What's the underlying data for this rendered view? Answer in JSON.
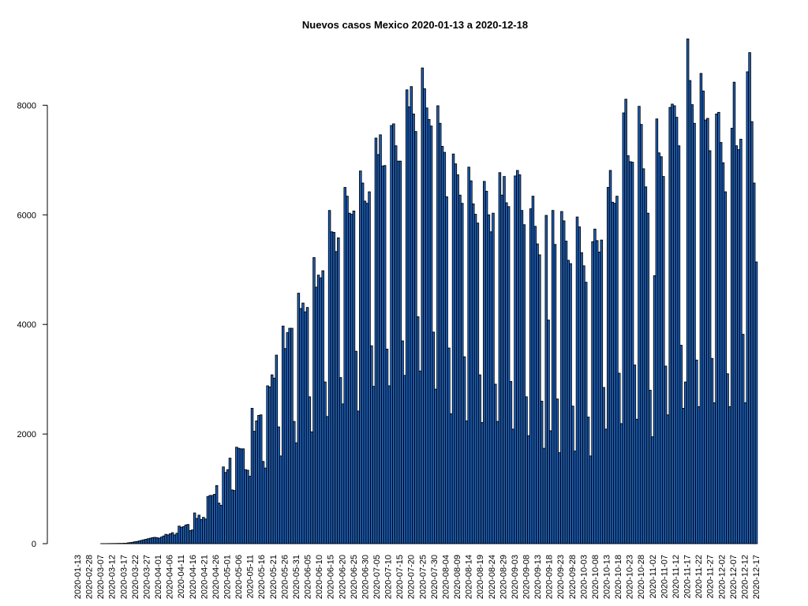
{
  "chart_data": {
    "type": "bar",
    "title": "Nuevos casos Mexico 2020-01-13 a 2020-12-18",
    "xlabel": "",
    "ylabel": "",
    "ylim": [
      0,
      9200
    ],
    "yticks": [
      0,
      2000,
      4000,
      6000,
      8000
    ],
    "x_start": "2020-01-13",
    "x_end": "2020-12-18",
    "x_ticks": [
      "2020-01-13",
      "2020-02-28",
      "2020-03-07",
      "2020-03-12",
      "2020-03-17",
      "2020-03-22",
      "2020-03-27",
      "2020-04-01",
      "2020-04-06",
      "2020-04-11",
      "2020-04-16",
      "2020-04-21",
      "2020-04-26",
      "2020-05-01",
      "2020-05-06",
      "2020-05-11",
      "2020-05-16",
      "2020-05-21",
      "2020-05-26",
      "2020-05-31",
      "2020-06-05",
      "2020-06-10",
      "2020-06-15",
      "2020-06-20",
      "2020-06-25",
      "2020-06-30",
      "2020-07-05",
      "2020-07-10",
      "2020-07-15",
      "2020-07-20",
      "2020-07-25",
      "2020-07-30",
      "2020-08-04",
      "2020-08-09",
      "2020-08-14",
      "2020-08-19",
      "2020-08-24",
      "2020-08-29",
      "2020-09-03",
      "2020-09-08",
      "2020-09-13",
      "2020-09-18",
      "2020-09-23",
      "2020-09-28",
      "2020-10-03",
      "2020-10-08",
      "2020-10-13",
      "2020-10-18",
      "2020-10-23",
      "2020-10-28",
      "2020-11-02",
      "2020-11-07",
      "2020-11-12",
      "2020-11-17",
      "2020-11-22",
      "2020-11-27",
      "2020-12-02",
      "2020-12-07",
      "2020-12-12",
      "2020-12-17"
    ],
    "bar_color": "#1f66c6",
    "border_color": "#000000",
    "values": [
      0,
      0,
      0,
      0,
      0,
      0,
      0,
      0,
      0,
      0,
      0,
      0,
      1,
      1,
      1,
      2,
      2,
      3,
      3,
      4,
      5,
      5,
      7,
      8,
      15,
      20,
      25,
      35,
      40,
      50,
      60,
      70,
      80,
      90,
      100,
      110,
      115,
      110,
      100,
      120,
      140,
      170,
      160,
      180,
      200,
      160,
      190,
      320,
      300,
      310,
      340,
      350,
      240,
      250,
      560,
      460,
      520,
      440,
      480,
      450,
      860,
      880,
      880,
      900,
      1060,
      740,
      700,
      1400,
      1300,
      1350,
      1560,
      980,
      970,
      1760,
      1740,
      1730,
      1730,
      1350,
      1340,
      1230,
      2470,
      2050,
      2240,
      2340,
      2350,
      1500,
      1380,
      2880,
      2860,
      3080,
      3020,
      3440,
      2130,
      1600,
      3970,
      3560,
      3850,
      3930,
      3930,
      2230,
      1840,
      4570,
      4290,
      4390,
      4230,
      4310,
      2680,
      2040,
      5220,
      4680,
      4900,
      4850,
      4980,
      2950,
      2320,
      6080,
      5690,
      5680,
      5330,
      5580,
      3030,
      2550,
      6500,
      6340,
      6030,
      6010,
      6070,
      3510,
      2420,
      6800,
      6580,
      6250,
      6210,
      6420,
      3610,
      2870,
      7400,
      7100,
      7460,
      6890,
      6900,
      3550,
      2880,
      7630,
      7660,
      7260,
      6980,
      6980,
      3700,
      3070,
      8280,
      7970,
      8340,
      7840,
      7520,
      4140,
      3150,
      8680,
      8300,
      7950,
      7740,
      7620,
      3860,
      2820,
      7990,
      7670,
      7250,
      7140,
      6330,
      3570,
      2370,
      7110,
      6930,
      6730,
      6360,
      6210,
      3410,
      2240,
      6870,
      6620,
      6200,
      6010,
      5850,
      3080,
      2210,
      6610,
      6430,
      6000,
      5690,
      6030,
      2910,
      2230,
      6770,
      6360,
      6700,
      6220,
      6150,
      2960,
      2090,
      6710,
      6810,
      6730,
      6080,
      5820,
      2680,
      1970,
      6110,
      6340,
      5790,
      5470,
      5270,
      2600,
      1740,
      5990,
      4080,
      2060,
      6080,
      5460,
      2640,
      1660,
      6060,
      5890,
      5520,
      5170,
      5110,
      2510,
      1690,
      5960,
      5780,
      5310,
      5070,
      4770,
      2310,
      1600,
      5510,
      5740,
      5530,
      5320,
      5540,
      2850,
      2090,
      6500,
      6810,
      6230,
      6210,
      6340,
      3110,
      2190,
      7860,
      8110,
      7080,
      6970,
      6960,
      3260,
      2270,
      7980,
      7650,
      6840,
      6510,
      6030,
      2800,
      1950,
      4890,
      7750,
      7130,
      7060,
      6700,
      3240,
      2350,
      7960,
      8020,
      7990,
      7780,
      7260,
      3620,
      2470,
      2950,
      9210,
      8450,
      8010,
      7670,
      3350,
      2500,
      8580,
      8260,
      7730,
      7760,
      7170,
      3380,
      2570,
      7840,
      7870,
      7320,
      6950,
      6420,
      3100,
      2500,
      7580,
      8420,
      7260,
      7190,
      7380,
      3820,
      2570,
      8610,
      8960,
      7700,
      6580,
      5140
    ]
  }
}
